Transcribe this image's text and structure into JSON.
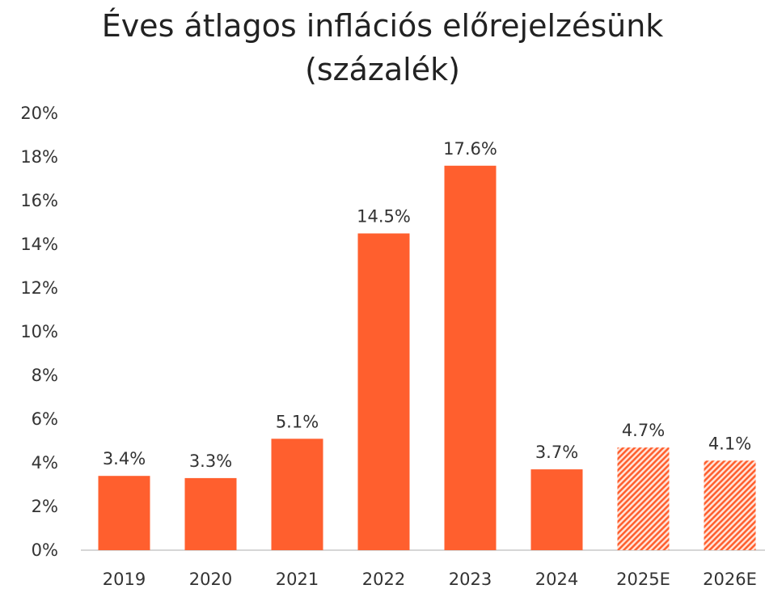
{
  "chart_data": {
    "type": "bar",
    "title": "Éves átlagos inflációs előrejelzésünk",
    "subtitle": "(százalék)",
    "categories": [
      "2019",
      "2020",
      "2021",
      "2022",
      "2023",
      "2024",
      "2025E",
      "2026E"
    ],
    "values": [
      3.4,
      3.3,
      5.1,
      14.5,
      17.6,
      3.7,
      4.7,
      4.1
    ],
    "value_labels": [
      "3.4%",
      "3.3%",
      "5.1%",
      "14.5%",
      "17.6%",
      "3.7%",
      "4.7%",
      "4.1%"
    ],
    "estimate": [
      false,
      false,
      false,
      false,
      false,
      false,
      true,
      true
    ],
    "y_ticks": [
      "0%",
      "2%",
      "4%",
      "6%",
      "8%",
      "10%",
      "12%",
      "14%",
      "16%",
      "18%",
      "20%"
    ],
    "ylim": [
      0,
      20
    ],
    "grid": false,
    "colors": {
      "bar": "#ff5f2e",
      "estimate_hatch": "#ff5f2e",
      "axis": "#c8c8c8"
    }
  }
}
